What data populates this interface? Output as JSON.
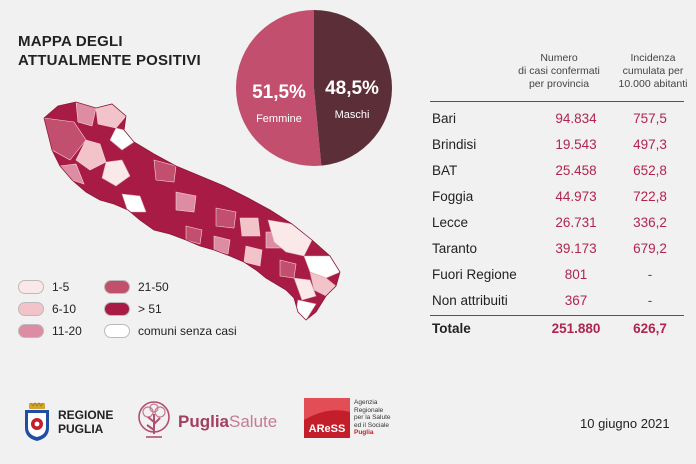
{
  "title": {
    "line1": "MAPPA DEGLI",
    "line2": "ATTUALMENTE POSITIVI"
  },
  "gender": {
    "female": {
      "pct": "51,5%",
      "label": "Femmine",
      "value": 51.5,
      "color": "#c24f6d"
    },
    "male": {
      "pct": "48,5%",
      "label": "Maschi",
      "value": 48.5,
      "color": "#5c2f38"
    }
  },
  "legend": [
    {
      "label": "1-5",
      "color": "#fbe9ea"
    },
    {
      "label": "6-10",
      "color": "#f2c3c9"
    },
    {
      "label": "11-20",
      "color": "#dd8ca3"
    },
    {
      "label": "21-50",
      "color": "#c24f6d"
    },
    {
      "label": "> 51",
      "color": "#a81b45"
    },
    {
      "label": "comuni senza casi",
      "color": "#ffffff"
    }
  ],
  "table": {
    "header_cases": [
      "Numero",
      "di casi confermati",
      "per provincia"
    ],
    "header_incidence": [
      "Incidenza",
      "cumulata per",
      "10.000 abitanti"
    ],
    "rows": [
      {
        "name": "Bari",
        "cases": "94.834",
        "incidence": "757,5"
      },
      {
        "name": "Brindisi",
        "cases": "19.543",
        "incidence": "497,3"
      },
      {
        "name": "BAT",
        "cases": "25.458",
        "incidence": "652,8"
      },
      {
        "name": "Foggia",
        "cases": "44.973",
        "incidence": "722,8"
      },
      {
        "name": "Lecce",
        "cases": "26.731",
        "incidence": "336,2"
      },
      {
        "name": "Taranto",
        "cases": "39.173",
        "incidence": "679,2"
      },
      {
        "name": "Fuori Regione",
        "cases": "801",
        "incidence": "-"
      },
      {
        "name": "Non attribuiti",
        "cases": "367",
        "incidence": "-"
      }
    ],
    "total": {
      "name": "Totale",
      "cases": "251.880",
      "incidence": "626,7"
    }
  },
  "footer": {
    "regione": [
      "REGIONE",
      "PUGLIA"
    ],
    "puglia_salute": {
      "a": "Puglia",
      "b": "Salute"
    },
    "ares_name": "AReSS",
    "ares_text": [
      "Agenzia",
      "Regionale",
      "per la Salute",
      "ed il Sociale"
    ],
    "ares_region": "Puglia",
    "date": "10 giugno 2021"
  }
}
